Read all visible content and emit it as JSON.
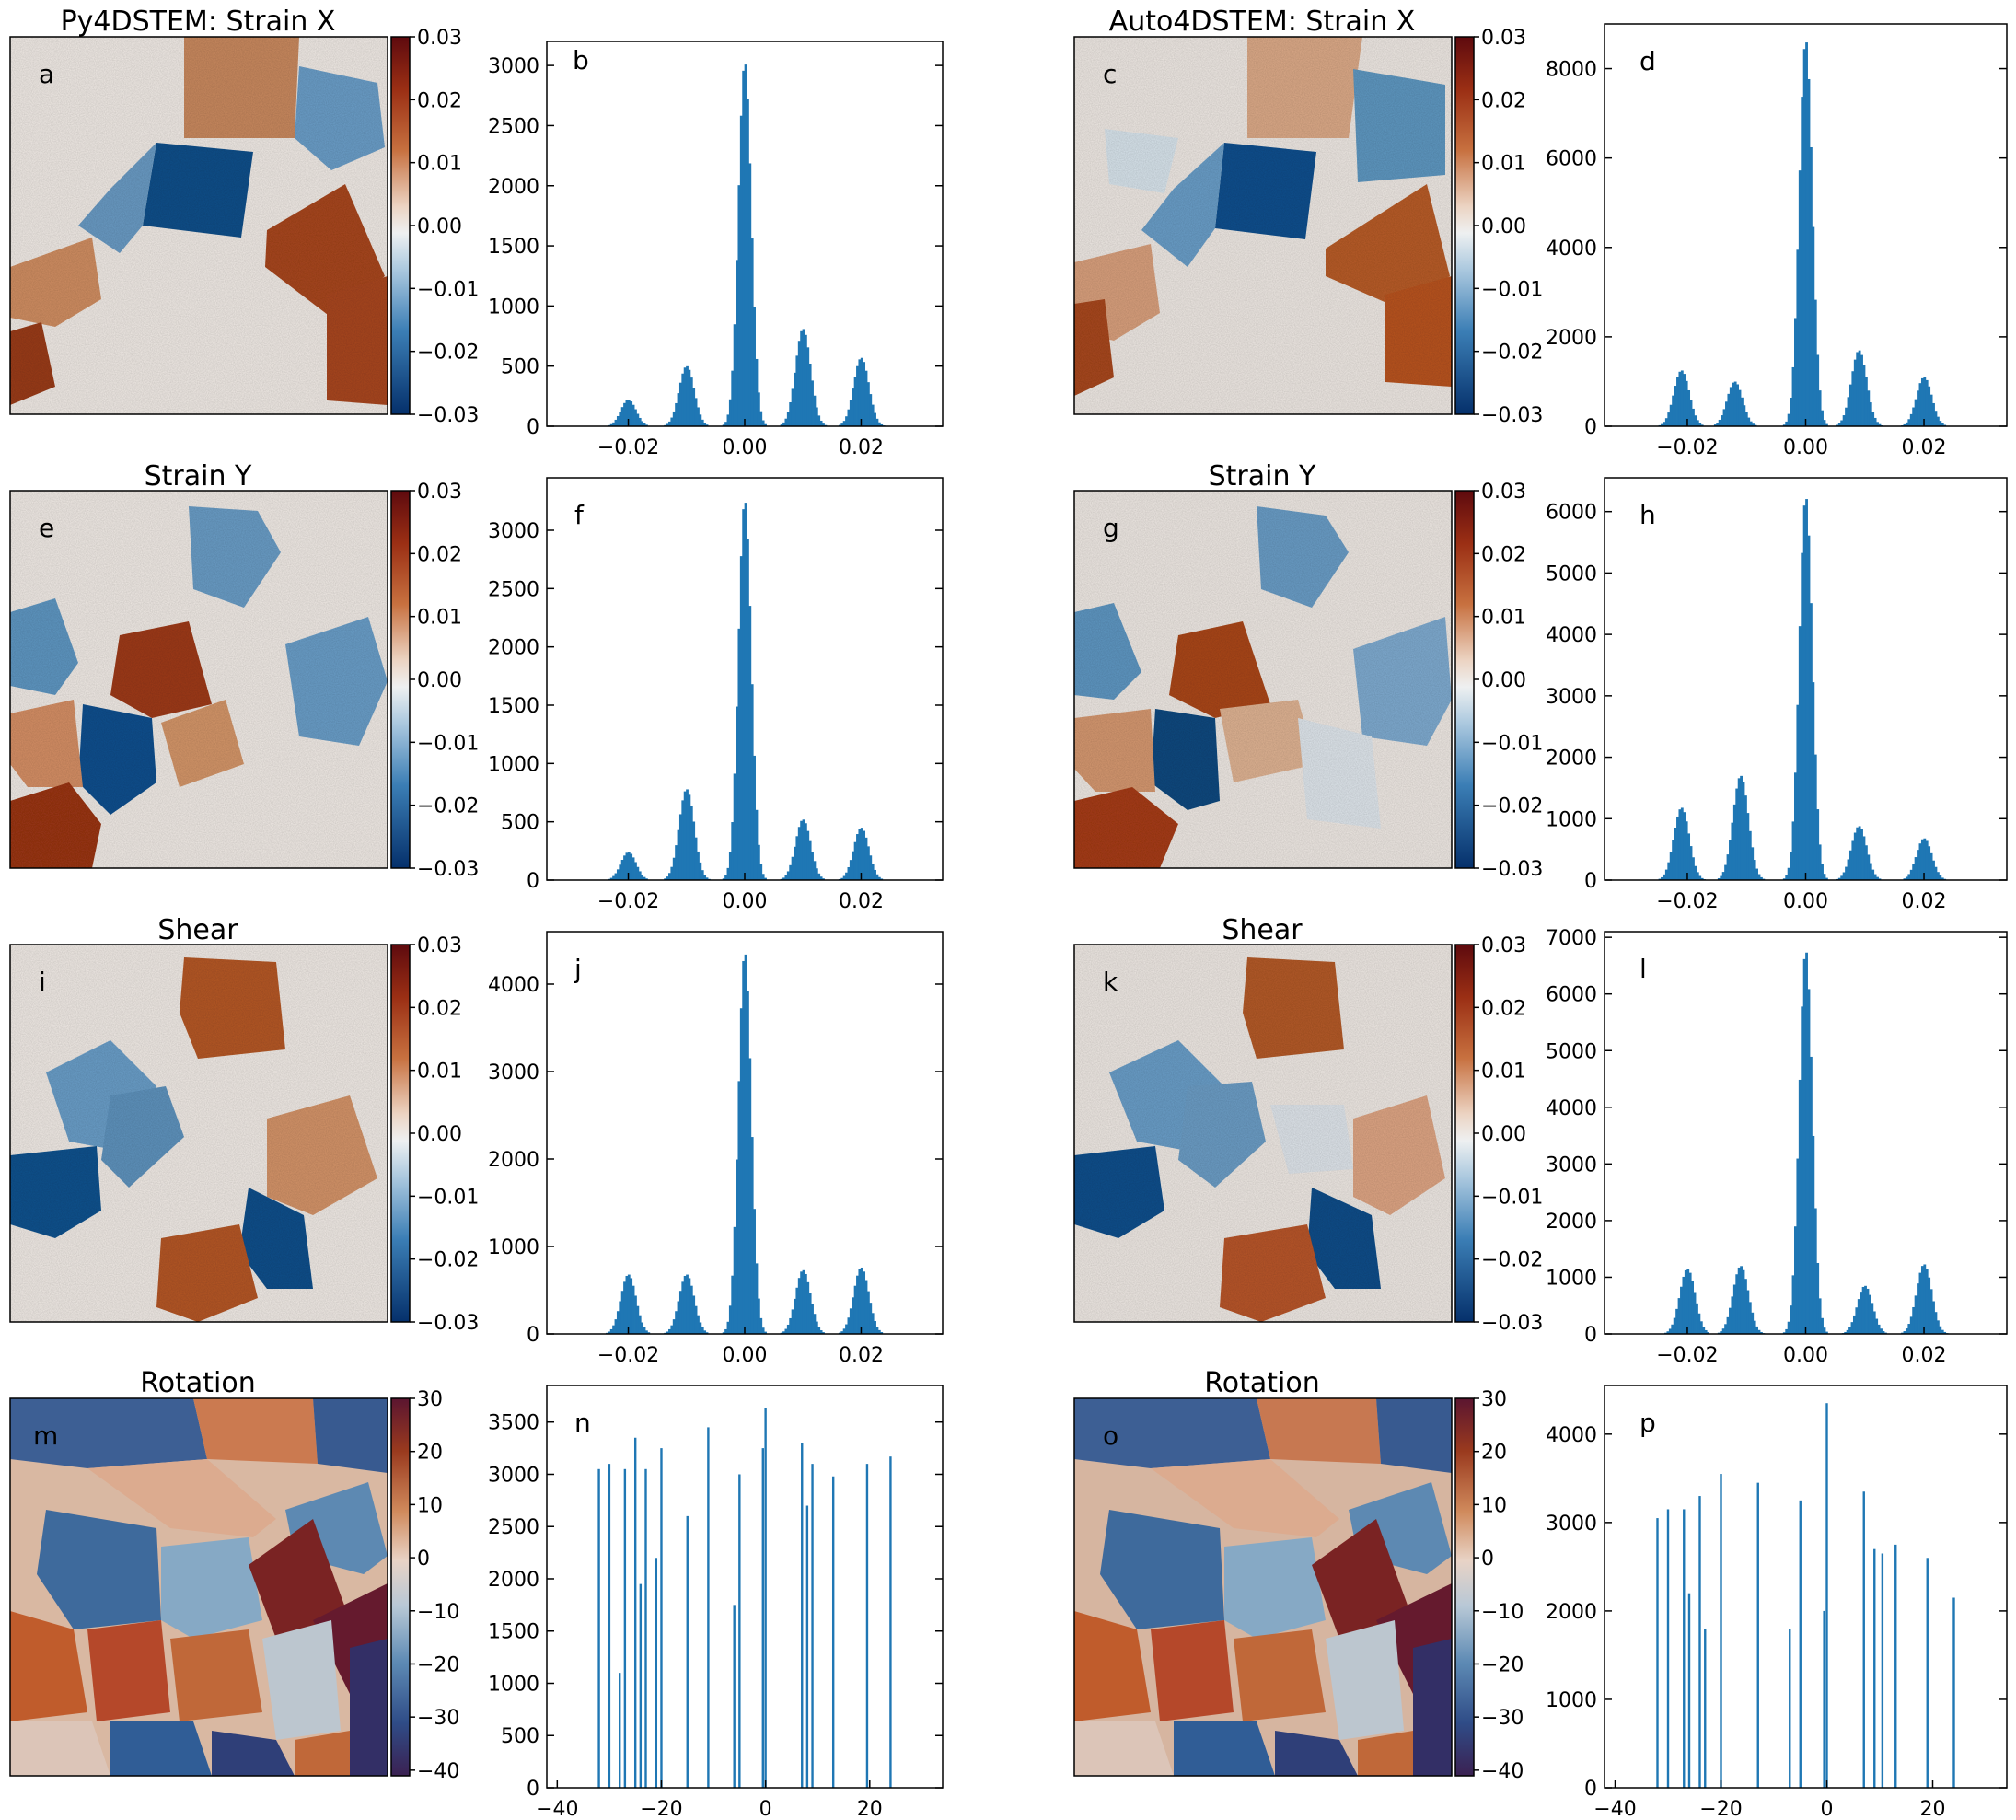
{
  "figure": {
    "left_heading": "Py4DSTEM: Strain X",
    "right_heading": "Auto4DSTEM: Strain X"
  },
  "colors": {
    "strain_colormap": [
      "#05306b",
      "#2166ac",
      "#6a9ec9",
      "#bcd3e3",
      "#f1ece6",
      "#e5b79a",
      "#d08a5c",
      "#b5531f",
      "#5e0a0e"
    ],
    "rotation_colormap": [
      "#3b2152",
      "#2f4c87",
      "#6d95ba",
      "#c3ccd5",
      "#dcc4b6",
      "#d09473",
      "#b45a33",
      "#7a2020",
      "#5b1530"
    ],
    "histogram_bar": "#1f77b4",
    "boundary": "#9b2a12"
  },
  "rows": [
    {
      "row_title": "Strain X",
      "left_title": "Py4DSTEM: Strain X",
      "right_title": "Auto4DSTEM: Strain X",
      "cbar_ticks": [
        "0.03",
        "0.02",
        "0.01",
        "0.00",
        "−0.01",
        "−0.02",
        "−0.03"
      ],
      "panel_labels": [
        "a",
        "b",
        "c",
        "d"
      ]
    },
    {
      "row_title": "Strain Y",
      "left_title": "Strain Y",
      "right_title": "Strain Y",
      "cbar_ticks": [
        "0.03",
        "0.02",
        "0.01",
        "0.00",
        "−0.01",
        "−0.02",
        "−0.03"
      ],
      "panel_labels": [
        "e",
        "f",
        "g",
        "h"
      ]
    },
    {
      "row_title": "Shear",
      "left_title": "Shear",
      "right_title": "Shear",
      "cbar_ticks": [
        "0.03",
        "0.02",
        "0.01",
        "0.00",
        "−0.01",
        "−0.02",
        "−0.03"
      ],
      "panel_labels": [
        "i",
        "j",
        "k",
        "l"
      ]
    },
    {
      "row_title": "Rotation",
      "left_title": "Rotation",
      "right_title": "Rotation",
      "cbar_ticks": [
        "30",
        "20",
        "10",
        "0",
        "−10",
        "−20",
        "−30",
        "−40"
      ],
      "panel_labels": [
        "m",
        "n",
        "o",
        "p"
      ]
    }
  ],
  "chart_data": [
    {
      "panel": "b",
      "type": "histogram",
      "xlim": [
        -0.034,
        0.034
      ],
      "ylim": [
        0,
        3200
      ],
      "xticks": [
        "−0.02",
        "0.00",
        "0.02"
      ],
      "yticks": [
        "0",
        "500",
        "1000",
        "1500",
        "2000",
        "2500",
        "3000"
      ],
      "peaks": [
        {
          "x": -0.02,
          "y": 220
        },
        {
          "x": -0.01,
          "y": 500
        },
        {
          "x": 0.0,
          "y": 3030
        },
        {
          "x": 0.01,
          "y": 810
        },
        {
          "x": 0.02,
          "y": 570
        }
      ]
    },
    {
      "panel": "d",
      "type": "histogram",
      "xlim": [
        -0.034,
        0.034
      ],
      "ylim": [
        0,
        9000
      ],
      "xticks": [
        "−0.02",
        "0.00",
        "0.02"
      ],
      "yticks": [
        "0",
        "2000",
        "4000",
        "6000",
        "8000"
      ],
      "peaks": [
        {
          "x": -0.021,
          "y": 1250
        },
        {
          "x": -0.012,
          "y": 1000
        },
        {
          "x": 0.0,
          "y": 8650
        },
        {
          "x": 0.009,
          "y": 1700
        },
        {
          "x": 0.02,
          "y": 1100
        }
      ]
    },
    {
      "panel": "f",
      "type": "histogram",
      "xlim": [
        -0.034,
        0.034
      ],
      "ylim": [
        0,
        3450
      ],
      "xticks": [
        "−0.02",
        "0.00",
        "0.02"
      ],
      "yticks": [
        "0",
        "500",
        "1000",
        "1500",
        "2000",
        "2500",
        "3000"
      ],
      "peaks": [
        {
          "x": -0.02,
          "y": 240
        },
        {
          "x": -0.01,
          "y": 780
        },
        {
          "x": 0.0,
          "y": 3260
        },
        {
          "x": 0.01,
          "y": 520
        },
        {
          "x": 0.02,
          "y": 450
        }
      ]
    },
    {
      "panel": "h",
      "type": "histogram",
      "xlim": [
        -0.034,
        0.034
      ],
      "ylim": [
        0,
        6550
      ],
      "xticks": [
        "−0.02",
        "0.00",
        "0.02"
      ],
      "yticks": [
        "0",
        "1000",
        "2000",
        "3000",
        "4000",
        "5000",
        "6000"
      ],
      "peaks": [
        {
          "x": -0.021,
          "y": 1180
        },
        {
          "x": -0.011,
          "y": 1700
        },
        {
          "x": 0.0,
          "y": 6250
        },
        {
          "x": 0.009,
          "y": 880
        },
        {
          "x": 0.02,
          "y": 680
        }
      ]
    },
    {
      "panel": "j",
      "type": "histogram",
      "xlim": [
        -0.034,
        0.034
      ],
      "ylim": [
        0,
        4600
      ],
      "xticks": [
        "−0.02",
        "0.00",
        "0.02"
      ],
      "yticks": [
        "0",
        "1000",
        "2000",
        "3000",
        "4000"
      ],
      "peaks": [
        {
          "x": -0.02,
          "y": 680
        },
        {
          "x": -0.01,
          "y": 680
        },
        {
          "x": 0.0,
          "y": 4370
        },
        {
          "x": 0.01,
          "y": 730
        },
        {
          "x": 0.02,
          "y": 760
        }
      ]
    },
    {
      "panel": "l",
      "type": "histogram",
      "xlim": [
        -0.034,
        0.034
      ],
      "ylim": [
        0,
        7100
      ],
      "xticks": [
        "−0.02",
        "0.00",
        "0.02"
      ],
      "yticks": [
        "0",
        "1000",
        "2000",
        "3000",
        "4000",
        "5000",
        "6000",
        "7000"
      ],
      "peaks": [
        {
          "x": -0.02,
          "y": 1150
        },
        {
          "x": -0.011,
          "y": 1200
        },
        {
          "x": 0.0,
          "y": 6780
        },
        {
          "x": 0.01,
          "y": 850
        },
        {
          "x": 0.02,
          "y": 1230
        }
      ]
    },
    {
      "panel": "n",
      "type": "histogram",
      "xlim": [
        -42,
        34
      ],
      "ylim": [
        0,
        3850
      ],
      "xticks": [
        "−40",
        "−20",
        "0",
        "20"
      ],
      "yticks": [
        "0",
        "500",
        "1000",
        "1500",
        "2000",
        "2500",
        "3000",
        "3500"
      ],
      "spikes": [
        {
          "x": -32,
          "y": 3050
        },
        {
          "x": -30,
          "y": 3100
        },
        {
          "x": -28,
          "y": 1100
        },
        {
          "x": -27,
          "y": 3050
        },
        {
          "x": -25,
          "y": 3350
        },
        {
          "x": -24,
          "y": 1950
        },
        {
          "x": -23,
          "y": 3050
        },
        {
          "x": -21,
          "y": 2200
        },
        {
          "x": -20,
          "y": 3250
        },
        {
          "x": -15,
          "y": 2600
        },
        {
          "x": -11,
          "y": 3450
        },
        {
          "x": -6,
          "y": 1750
        },
        {
          "x": -5,
          "y": 3000
        },
        {
          "x": -0.5,
          "y": 3250
        },
        {
          "x": 0,
          "y": 3630
        },
        {
          "x": 7,
          "y": 3300
        },
        {
          "x": 8,
          "y": 2700
        },
        {
          "x": 9,
          "y": 3100
        },
        {
          "x": 13,
          "y": 2980
        },
        {
          "x": 19.5,
          "y": 3100
        },
        {
          "x": 24,
          "y": 3170
        }
      ]
    },
    {
      "panel": "p",
      "type": "histogram",
      "xlim": [
        -42,
        34
      ],
      "ylim": [
        0,
        4550
      ],
      "xticks": [
        "−40",
        "−20",
        "0",
        "20"
      ],
      "yticks": [
        "0",
        "1000",
        "2000",
        "3000",
        "4000"
      ],
      "spikes": [
        {
          "x": -32,
          "y": 3050
        },
        {
          "x": -30,
          "y": 3150
        },
        {
          "x": -27,
          "y": 3150
        },
        {
          "x": -26,
          "y": 2200
        },
        {
          "x": -24,
          "y": 3300
        },
        {
          "x": -23,
          "y": 1800
        },
        {
          "x": -20,
          "y": 3550
        },
        {
          "x": -13,
          "y": 3450
        },
        {
          "x": -7,
          "y": 1800
        },
        {
          "x": -5,
          "y": 3250
        },
        {
          "x": -0.5,
          "y": 2000
        },
        {
          "x": 0,
          "y": 4350
        },
        {
          "x": 7,
          "y": 3350
        },
        {
          "x": 9,
          "y": 2700
        },
        {
          "x": 10.5,
          "y": 2650
        },
        {
          "x": 13,
          "y": 2750
        },
        {
          "x": 19,
          "y": 2600
        },
        {
          "x": 24,
          "y": 2150
        }
      ]
    }
  ]
}
